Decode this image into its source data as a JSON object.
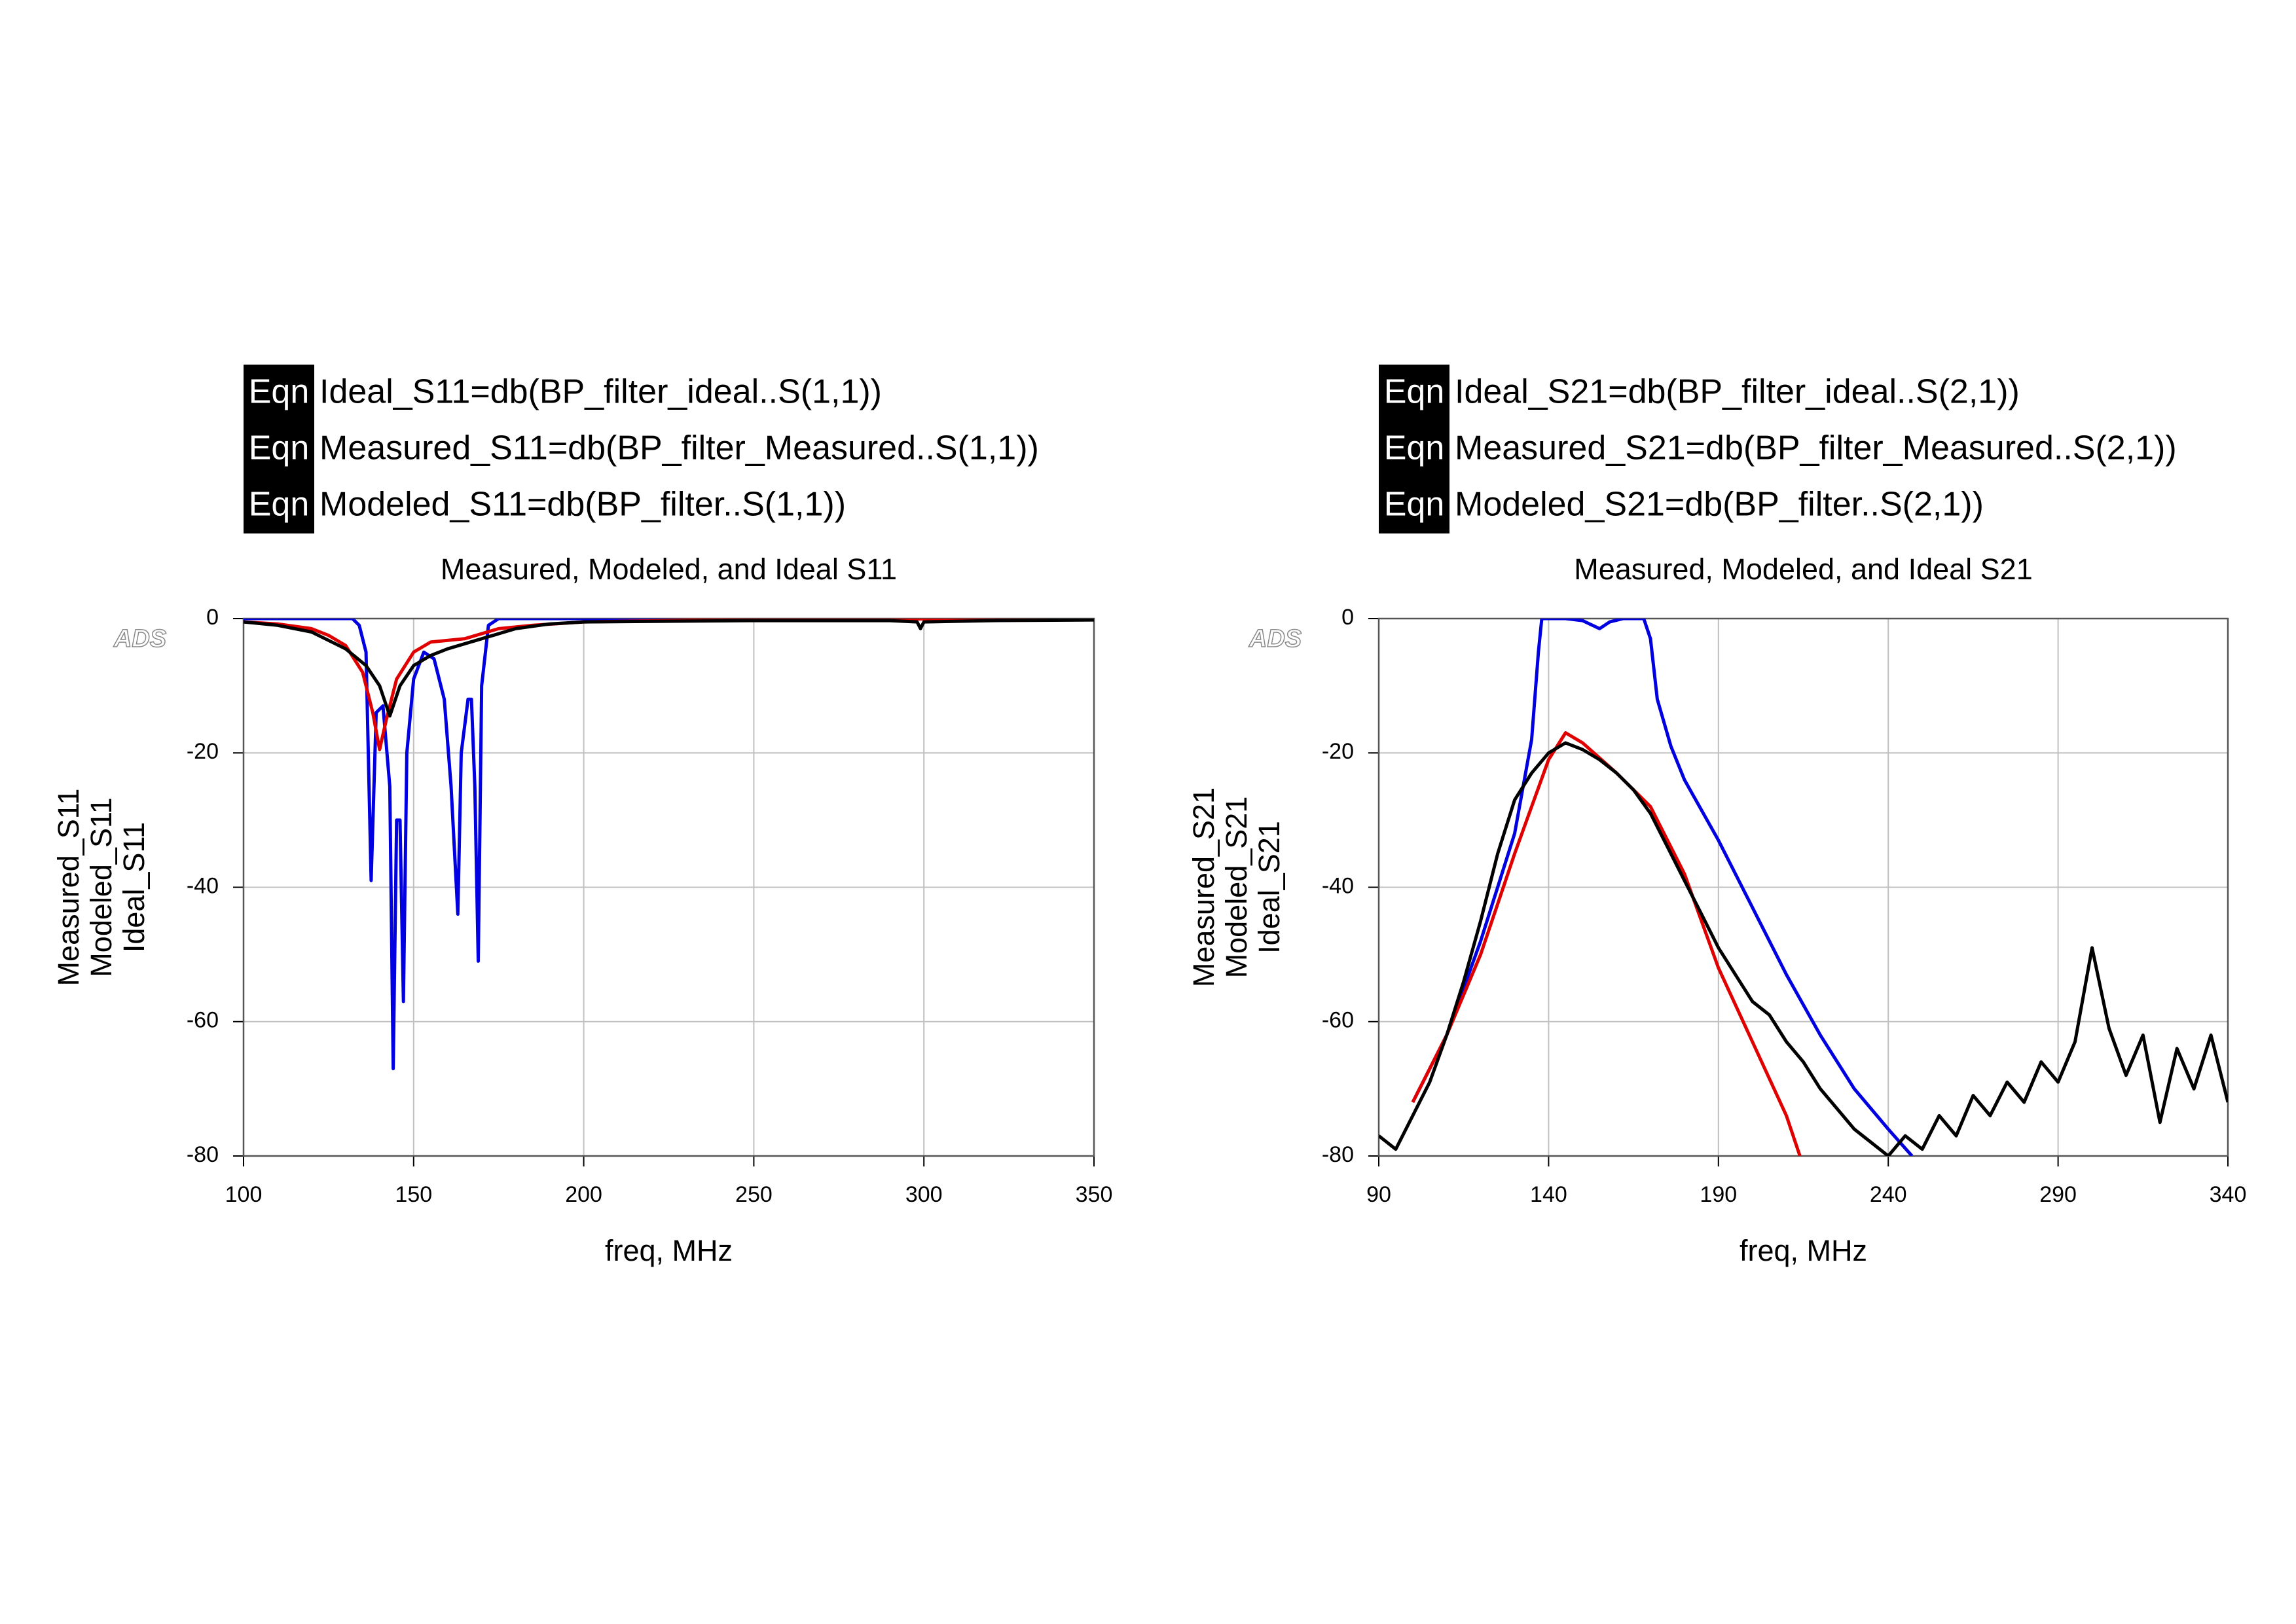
{
  "chart_data": [
    {
      "type": "line",
      "title": "Measured, Modeled, and Ideal S11",
      "watermark": "ADS",
      "equations": [
        {
          "tag": "Eqn",
          "text": "Ideal_S11=db(BP_filter_ideal..S(1,1))"
        },
        {
          "tag": "Eqn",
          "text": "Measured_S11=db(BP_filter_Measured..S(1,1))"
        },
        {
          "tag": "Eqn",
          "text": "Modeled_S11=db(BP_filter..S(1,1))"
        }
      ],
      "x_label": "freq, MHz",
      "xlim": [
        100,
        350
      ],
      "xticks": [
        100,
        150,
        200,
        250,
        300,
        350
      ],
      "ylim": [
        -80,
        0
      ],
      "yticks": [
        0,
        -20,
        -40,
        -60,
        -80
      ],
      "grid": true,
      "series": [
        {
          "name": "Measured_S11",
          "color": "#000000",
          "x": [
            100,
            110,
            120,
            130,
            136,
            140,
            143,
            146,
            150,
            155,
            160,
            170,
            180,
            190,
            200,
            250,
            290,
            298,
            299,
            300,
            320,
            350
          ],
          "values": [
            -0.5,
            -1,
            -2,
            -4.5,
            -7,
            -10,
            -14.5,
            -10,
            -7,
            -5.5,
            -4.5,
            -3,
            -1.5,
            -0.8,
            -0.5,
            -0.3,
            -0.3,
            -0.5,
            -1.5,
            -0.5,
            -0.3,
            -0.2
          ]
        },
        {
          "name": "Modeled_S11",
          "color": "#e00000",
          "x": [
            100,
            110,
            120,
            125,
            130,
            135,
            138,
            140,
            142,
            145,
            150,
            155,
            165,
            175,
            185,
            200,
            250,
            350
          ],
          "values": [
            -0.5,
            -0.8,
            -1.5,
            -2.5,
            -4,
            -8,
            -14,
            -19.5,
            -15,
            -9,
            -5,
            -3.5,
            -3,
            -1.5,
            -1,
            -0.5,
            -0.1,
            0
          ]
        },
        {
          "name": "Ideal_S11",
          "color": "#0000e0",
          "x": [
            100,
            132,
            134,
            136,
            137.5,
            139,
            141,
            143,
            144,
            145,
            146,
            147,
            148,
            150,
            153,
            156,
            159,
            161,
            163,
            164,
            166,
            167,
            168,
            169,
            170,
            172,
            175,
            350
          ],
          "values": [
            0,
            0,
            -1,
            -5,
            -39,
            -14,
            -13,
            -25,
            -67,
            -30,
            -30,
            -57,
            -20,
            -9,
            -5,
            -6,
            -12,
            -25,
            -44,
            -20,
            -12,
            -12,
            -25,
            -51,
            -10,
            -1,
            0,
            0
          ]
        }
      ]
    },
    {
      "type": "line",
      "title": "Measured, Modeled, and Ideal S21",
      "watermark": "ADS",
      "equations": [
        {
          "tag": "Eqn",
          "text": "Ideal_S21=db(BP_filter_ideal..S(2,1))"
        },
        {
          "tag": "Eqn",
          "text": "Measured_S21=db(BP_filter_Measured..S(2,1))"
        },
        {
          "tag": "Eqn",
          "text": "Modeled_S21=db(BP_filter..S(2,1))"
        }
      ],
      "x_label": "freq, MHz",
      "xlim": [
        90,
        340
      ],
      "xticks": [
        90,
        140,
        190,
        240,
        290,
        340
      ],
      "ylim": [
        -80,
        0
      ],
      "yticks": [
        0,
        -20,
        -40,
        -60,
        -80
      ],
      "grid": true,
      "series": [
        {
          "name": "Measured_S21",
          "color": "#000000",
          "x": [
            90,
            95,
            100,
            105,
            110,
            115,
            120,
            125,
            130,
            135,
            140,
            145,
            150,
            155,
            160,
            165,
            170,
            175,
            180,
            185,
            190,
            195,
            200,
            205,
            210,
            215,
            220,
            225,
            230,
            235,
            240,
            245,
            250,
            255,
            260,
            265,
            270,
            275,
            280,
            285,
            290,
            295,
            300,
            305,
            310,
            315,
            320,
            325,
            330,
            335,
            340
          ],
          "values": [
            -77,
            -79,
            -74,
            -69,
            -62,
            -54,
            -45,
            -35,
            -27,
            -23,
            -20,
            -18.5,
            -19.5,
            -21,
            -23,
            -25.5,
            -29,
            -34,
            -39,
            -44,
            -49,
            -53,
            -57,
            -59,
            -63,
            -66,
            -70,
            -73,
            -76,
            -78,
            -80,
            -77,
            -79,
            -74,
            -77,
            -71,
            -74,
            -69,
            -72,
            -66,
            -69,
            -63,
            -49,
            -61,
            -68,
            -62,
            -75,
            -64,
            -70,
            -62,
            -72
          ]
        },
        {
          "name": "Modeled_S21",
          "color": "#e00000",
          "x": [
            100,
            110,
            120,
            130,
            140,
            145,
            150,
            160,
            170,
            180,
            190,
            200,
            210,
            214
          ],
          "values": [
            -72,
            -62,
            -50,
            -35,
            -21,
            -17,
            -18.5,
            -23,
            -28,
            -38,
            -52,
            -63,
            -74,
            -80
          ]
        },
        {
          "name": "Ideal_S21",
          "color": "#0000e0",
          "x": [
            100,
            110,
            120,
            130,
            135,
            137,
            138,
            145,
            150,
            155,
            158,
            162,
            168,
            170,
            172,
            176,
            180,
            190,
            200,
            210,
            220,
            230,
            240,
            247
          ],
          "values": [
            -72,
            -62,
            -48,
            -32,
            -18,
            -5,
            0,
            0,
            -0.3,
            -1.5,
            -0.5,
            0,
            0,
            -3,
            -12,
            -19,
            -24,
            -33,
            -43,
            -53,
            -62,
            -70,
            -76,
            -80
          ]
        }
      ]
    }
  ]
}
